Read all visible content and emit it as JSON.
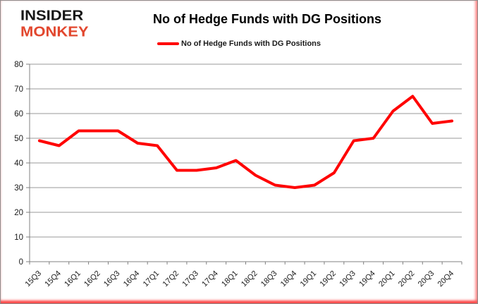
{
  "header": {
    "logo_line1": "INSIDER",
    "logo_line2": "MONKEY",
    "logo_color1": "#161616",
    "logo_color2": "#e2472e",
    "title": "No of Hedge Funds with DG Positions"
  },
  "legend": {
    "label": "No of Hedge Funds with DG Positions",
    "line_color": "#ff0000"
  },
  "chart_data": {
    "type": "line",
    "title": "No of Hedge Funds with DG Positions",
    "categories": [
      "15Q3",
      "15Q4",
      "16Q1",
      "16Q2",
      "16Q3",
      "16Q4",
      "17Q1",
      "17Q2",
      "17Q3",
      "17Q4",
      "18Q1",
      "18Q2",
      "18Q3",
      "18Q4",
      "19Q1",
      "19Q2",
      "19Q3",
      "19Q4",
      "20Q1",
      "20Q2",
      "20Q3",
      "20Q4"
    ],
    "series": [
      {
        "name": "No of Hedge Funds with DG Positions",
        "color": "#ff0000",
        "values": [
          49,
          47,
          53,
          53,
          53,
          48,
          47,
          37,
          37,
          38,
          41,
          35,
          31,
          30,
          31,
          36,
          49,
          50,
          61,
          67,
          56,
          57
        ]
      }
    ],
    "xlabel": "",
    "ylabel": "",
    "ylim": [
      0,
      80
    ],
    "yticks": [
      0,
      10,
      20,
      30,
      40,
      50,
      60,
      70,
      80
    ],
    "grid": true,
    "legend_position": "top",
    "grid_color": "#9a9a9a",
    "axis_color": "#808080",
    "tick_label_color": "#1a1a1a"
  }
}
